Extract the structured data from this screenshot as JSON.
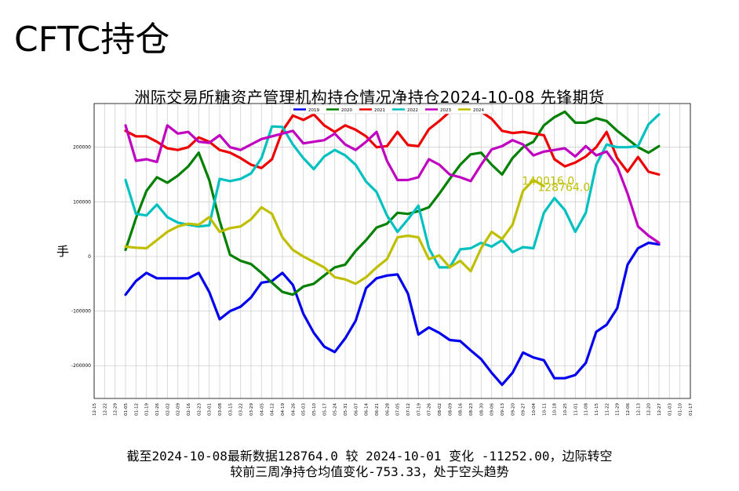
{
  "slide_title": "CFTC持仓",
  "footer": {
    "line1": "截至2024-10-08最新数据128764.0  较 2024-10-01 变化 -11252.00，边际转空",
    "line2": "较前三周净持仓均值变化-753.33，处于空头趋势"
  },
  "chart_data": {
    "type": "line",
    "title": "洲际交易所糖资产管理机构持仓情况净持仓2024-10-08   先锋期货",
    "ylabel": "手",
    "ylim": [
      -260000,
      280000
    ],
    "yticks": [
      -200000,
      -100000,
      0,
      100000,
      200000
    ],
    "grid": true,
    "legend_position": "top-center",
    "x_ticks": [
      "12-15",
      "12-22",
      "12-29",
      "01-05",
      "01-12",
      "01-19",
      "01-26",
      "02-02",
      "02-09",
      "02-16",
      "02-23",
      "03-01",
      "03-08",
      "03-15",
      "03-22",
      "03-29",
      "04-05",
      "04-12",
      "04-19",
      "04-26",
      "05-03",
      "05-10",
      "05-17",
      "05-24",
      "05-31",
      "06-07",
      "06-14",
      "06-21",
      "06-28",
      "07-05",
      "07-12",
      "07-19",
      "07-26",
      "08-02",
      "08-09",
      "08-16",
      "08-23",
      "08-30",
      "09-06",
      "09-13",
      "09-20",
      "09-27",
      "10-04",
      "10-11",
      "10-18",
      "10-25",
      "11-01",
      "11-08",
      "11-15",
      "11-22",
      "11-29",
      "12-06",
      "12-13",
      "12-20",
      "12-27",
      "01-03",
      "01-10",
      "01-17"
    ],
    "annotations": [
      {
        "text": "140016.0",
        "x": 41.5,
        "y": 140016,
        "color": "#bfbf00"
      },
      {
        "text": "128764.0",
        "x": 43,
        "y": 128764,
        "color": "#bfbf00"
      }
    ],
    "series": [
      {
        "name": "2019",
        "color": "#0000ee",
        "x_start": 3,
        "values": [
          -70000,
          -45000,
          -30000,
          -40000,
          -40000,
          -40000,
          -40000,
          -30000,
          -65000,
          -115000,
          -100000,
          -92000,
          -75000,
          -48000,
          -45000,
          -30000,
          -52000,
          -105000,
          -140000,
          -165000,
          -175000,
          -150000,
          -118000,
          -58000,
          -40000,
          -35000,
          -33000,
          -68000,
          -143000,
          -130000,
          -140000,
          -153000,
          -155000,
          -172000,
          -188000,
          -213000,
          -235000,
          -213000,
          -176000,
          -185000,
          -190000,
          -223000,
          -223000,
          -217000,
          -195000,
          -138000,
          -125000,
          -95000,
          -15000,
          15000,
          25000,
          22000
        ]
      },
      {
        "name": "2020",
        "color": "#008000",
        "x_start": 3,
        "values": [
          12000,
          70000,
          120000,
          145000,
          135000,
          148000,
          165000,
          190000,
          140000,
          65000,
          3000,
          -8000,
          -14000,
          -30000,
          -48000,
          -65000,
          -70000,
          -55000,
          -50000,
          -35000,
          -20000,
          -15000,
          10000,
          30000,
          53000,
          60000,
          80000,
          78000,
          83000,
          90000,
          115000,
          142000,
          168000,
          187000,
          190000,
          168000,
          150000,
          180000,
          200000,
          210000,
          240000,
          255000,
          265000,
          245000,
          245000,
          253000,
          248000,
          230000,
          215000,
          200000,
          190000,
          202000
        ]
      },
      {
        "name": "2021",
        "color": "#ee0000",
        "x_start": 3,
        "values": [
          230000,
          220000,
          220000,
          210000,
          198000,
          195000,
          200000,
          218000,
          210000,
          195000,
          190000,
          180000,
          168000,
          162000,
          178000,
          230000,
          258000,
          250000,
          260000,
          240000,
          228000,
          240000,
          232000,
          220000,
          200000,
          202000,
          228000,
          204000,
          202000,
          233000,
          248000,
          265000,
          270000,
          270000,
          265000,
          252000,
          230000,
          226000,
          228000,
          225000,
          222000,
          178000,
          165000,
          172000,
          183000,
          200000,
          228000,
          180000,
          155000,
          182000,
          155000,
          150000
        ]
      },
      {
        "name": "2022",
        "color": "#00c0c0",
        "x_start": 3,
        "values": [
          140000,
          78000,
          75000,
          95000,
          72000,
          62000,
          58000,
          55000,
          57000,
          142000,
          138000,
          142000,
          152000,
          180000,
          238000,
          237000,
          205000,
          180000,
          160000,
          183000,
          195000,
          185000,
          168000,
          137000,
          118000,
          75000,
          45000,
          68000,
          93000,
          15000,
          -20000,
          -20000,
          13000,
          15000,
          25000,
          18000,
          30000,
          8000,
          17000,
          15000,
          80000,
          107000,
          85000,
          45000,
          80000,
          168000,
          205000,
          200000,
          200000,
          202000,
          242000,
          260000
        ]
      },
      {
        "name": "2023",
        "color": "#c000c0",
        "x_start": 3,
        "values": [
          240000,
          175000,
          178000,
          173000,
          240000,
          225000,
          228000,
          210000,
          208000,
          222000,
          200000,
          195000,
          205000,
          215000,
          220000,
          225000,
          230000,
          207000,
          210000,
          213000,
          225000,
          205000,
          195000,
          210000,
          228000,
          175000,
          140000,
          140000,
          145000,
          178000,
          168000,
          150000,
          145000,
          138000,
          168000,
          196000,
          202000,
          213000,
          205000,
          185000,
          192000,
          195000,
          198000,
          183000,
          202000,
          185000,
          192000,
          165000,
          115000,
          55000,
          38000,
          25000
        ]
      },
      {
        "name": "2024",
        "color": "#bfbf00",
        "x_start": 3,
        "values": [
          18000,
          16000,
          15000,
          30000,
          45000,
          55000,
          60000,
          58000,
          72000,
          45000,
          52000,
          55000,
          68000,
          90000,
          78000,
          35000,
          12000,
          0,
          -10000,
          -20000,
          -38000,
          -42000,
          -50000,
          -38000,
          -20000,
          -5000,
          35000,
          38000,
          35000,
          -5000,
          2000,
          -20000,
          -8000,
          -27000,
          15000,
          45000,
          32000,
          58000,
          120000,
          140016,
          128764
        ]
      }
    ]
  }
}
